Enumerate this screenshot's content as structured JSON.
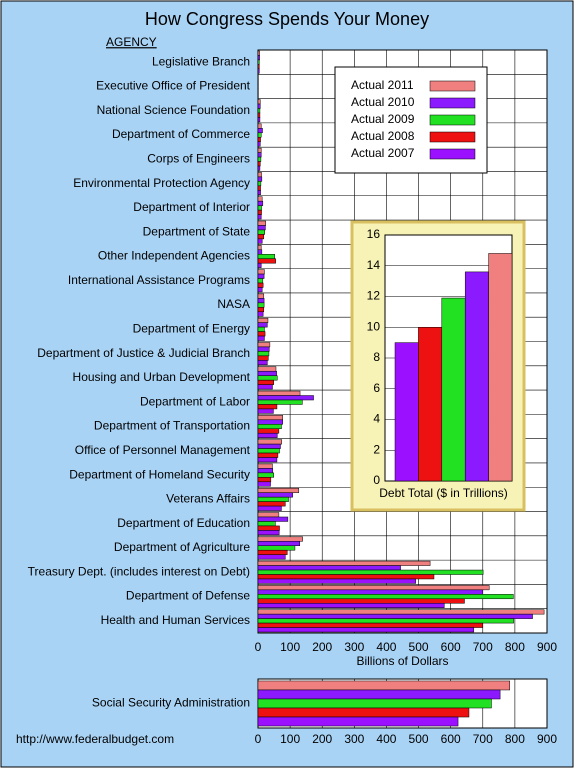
{
  "chart_data": [
    {
      "type": "hbar",
      "title": "How Congress Spends Your Money",
      "category_header": "AGENCY",
      "source": "http://www.federalbudget.com",
      "categories": [
        "Legislative Branch",
        "Executive Office of President",
        "National Science Foundation",
        "Department of Commerce",
        "Corps of Engineers",
        "Environmental Protection Agency",
        "Department of Interior",
        "Department of State",
        "Other Independent Agencies",
        "International Assistance Programs",
        "NASA",
        "Department of Energy",
        "Department of Justice & Judicial Branch",
        "Housing and Urban Development",
        "Department of Labor",
        "Department of Transportation",
        "Office of Personnel Management",
        "Department of Homeland Security",
        "Veterans Affairs",
        "Department of Education",
        "Department of Agriculture",
        "Treasury Dept. (includes interest on Debt)",
        "Department of Defense",
        "Health and Human Services"
      ],
      "series": [
        {
          "name": "Actual 2011",
          "color": "#f08080",
          "values": [
            5,
            1,
            7,
            10,
            10,
            11,
            13,
            24,
            10,
            20,
            18,
            31,
            37,
            56,
            131,
            77,
            74,
            45,
            127,
            65,
            139,
            536,
            720,
            891
          ]
        },
        {
          "name": "Actual 2010",
          "color": "#8c1aff",
          "values": [
            5,
            1,
            7,
            14,
            10,
            12,
            15,
            23,
            12,
            19,
            19,
            29,
            35,
            58,
            173,
            77,
            70,
            46,
            108,
            93,
            130,
            444,
            700,
            855
          ]
        },
        {
          "name": "Actual 2009",
          "color": "#22e022",
          "values": [
            4,
            1,
            6,
            10,
            9,
            9,
            11,
            21,
            52,
            15,
            19,
            20,
            34,
            60,
            138,
            73,
            67,
            49,
            95,
            54,
            115,
            701,
            795,
            796
          ]
        },
        {
          "name": "Actual 2008",
          "color": "#ee1111",
          "values": [
            4,
            1,
            6,
            8,
            7,
            8,
            11,
            18,
            55,
            16,
            18,
            22,
            32,
            49,
            59,
            65,
            62,
            40,
            85,
            67,
            91,
            548,
            643,
            700
          ]
        },
        {
          "name": "Actual 2007",
          "color": "#9a10ff",
          "values": [
            4,
            1,
            6,
            7,
            6,
            8,
            10,
            13,
            10,
            13,
            16,
            20,
            29,
            45,
            48,
            60,
            59,
            39,
            73,
            66,
            85,
            491,
            580,
            672
          ]
        }
      ],
      "xlim": [
        0,
        900
      ],
      "xticks": [
        0,
        100,
        200,
        300,
        400,
        500,
        600,
        700,
        800,
        900
      ],
      "xlabel": "Billions of Dollars",
      "grid": true,
      "legend": "upper right"
    },
    {
      "type": "hbar",
      "categories": [
        "Social Security Administration"
      ],
      "series": [
        {
          "color": "#f08080",
          "values": [
            784
          ]
        },
        {
          "color": "#8c1aff",
          "values": [
            754
          ]
        },
        {
          "color": "#22e022",
          "values": [
            727
          ]
        },
        {
          "color": "#ee1111",
          "values": [
            657
          ]
        },
        {
          "color": "#9a10ff",
          "values": [
            623
          ]
        }
      ],
      "xlim": [
        0,
        900
      ],
      "xticks": [
        0,
        100,
        200,
        300,
        400,
        500,
        600,
        700,
        800,
        900
      ],
      "grid": true
    },
    {
      "type": "bar",
      "xlabel": "Debt Total ($ in Trillions)",
      "categories": [
        null,
        null,
        null,
        null,
        null
      ],
      "values": [
        9.0,
        10.0,
        11.9,
        13.6,
        14.8
      ],
      "colors": [
        "#9a10ff",
        "#ee1111",
        "#22e022",
        "#8c1aff",
        "#f08080"
      ],
      "ylim": [
        0,
        16
      ],
      "yticks": [
        0,
        2,
        4,
        6,
        8,
        10,
        12,
        14,
        16
      ],
      "grid": true
    }
  ]
}
